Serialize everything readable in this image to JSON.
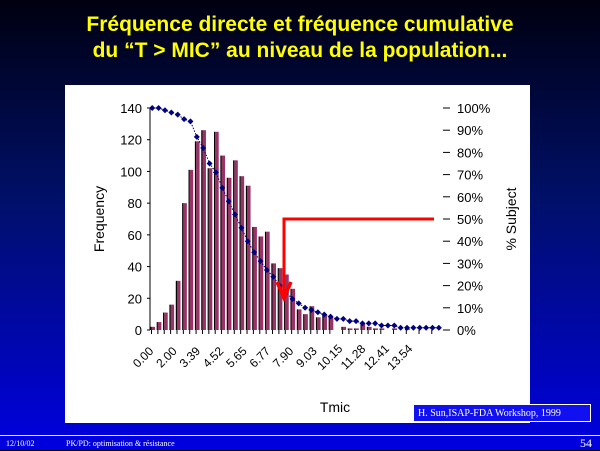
{
  "slide": {
    "title_line1": "Fréquence directe et fréquence cumulative",
    "title_line2": "du “T > MIC” au niveau de la population...",
    "source": "H. Sun,ISAP-FDA Workshop, 1999",
    "date": "12/10/02",
    "footer": "PK/PD: optimisation & résistance",
    "page": "54"
  },
  "chart_data": {
    "type": "bar",
    "xlabel": "Tmic",
    "ylabel": "Frequency",
    "y2label": "% Subject",
    "ylim": [
      0,
      140
    ],
    "y2lim": [
      0,
      100
    ],
    "yticks": [
      "0",
      "20",
      "40",
      "60",
      "80",
      "100",
      "120",
      "140"
    ],
    "y2ticks": [
      "0%",
      "10%",
      "20%",
      "30%",
      "40%",
      "50%",
      "60%",
      "70%",
      "80%",
      "90%",
      "100%"
    ],
    "xticks": [
      "0.00",
      "2.00",
      "3.39",
      "4.52",
      "5.65",
      "6.77",
      "7.90",
      "9.03",
      "10.15",
      "11.28",
      "12.41",
      "13.54"
    ],
    "series": [
      {
        "name": "Frequency",
        "kind": "bar",
        "color": "#993366",
        "values": [
          2,
          5,
          11,
          16,
          31,
          80,
          101,
          119,
          126,
          102,
          125,
          110,
          96,
          107,
          97,
          91,
          65,
          59,
          62,
          42,
          39,
          35,
          26,
          13,
          10,
          15,
          8,
          9,
          8,
          0,
          2,
          1,
          1,
          4,
          2,
          1,
          1,
          0,
          1,
          0,
          1,
          0,
          0,
          0,
          0,
          0
        ]
      },
      {
        "name": "% Subject (cumulative)",
        "kind": "line",
        "color": "#000080",
        "values": [
          100,
          100,
          99,
          98,
          97,
          95,
          94,
          87,
          82,
          75,
          71,
          64,
          58,
          52,
          46,
          40,
          35,
          31,
          27,
          24,
          20,
          17,
          14,
          12,
          10,
          9,
          8,
          7,
          6,
          5,
          5,
          4,
          4,
          3,
          3,
          3,
          2,
          2,
          2,
          1,
          1,
          1,
          1,
          1,
          1,
          1
        ]
      }
    ],
    "annotation": {
      "type": "arrow",
      "color": "#ff0000",
      "from_y2": 50,
      "label": ""
    }
  }
}
